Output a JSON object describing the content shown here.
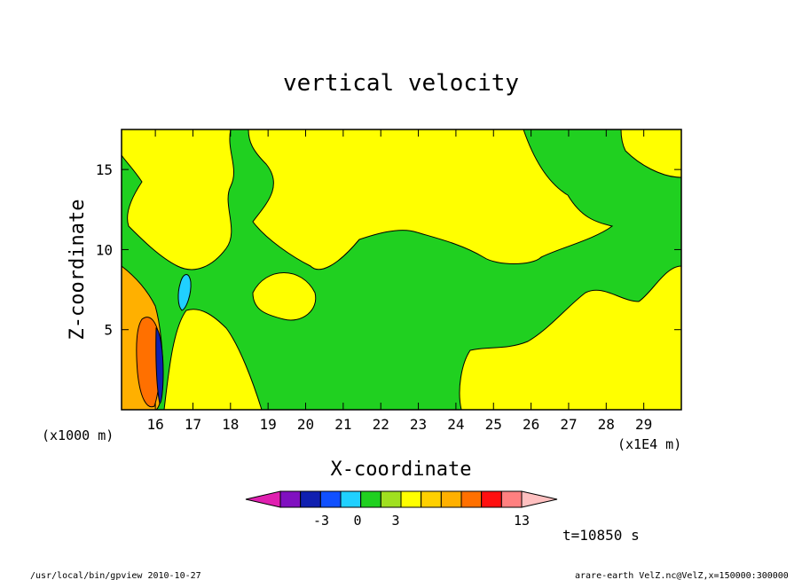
{
  "chart_data": {
    "type": "heatmap",
    "title": "vertical velocity",
    "xlabel": "X-coordinate",
    "ylabel": "Z-coordinate",
    "x_unit_left": "(x1000 m)",
    "x_unit_right": "(x1E4 m)",
    "xlim": [
      15.1,
      30.0
    ],
    "ylim": [
      0,
      17.5
    ],
    "x_ticks": [
      "16",
      "17",
      "18",
      "19",
      "20",
      "21",
      "22",
      "23",
      "24",
      "25",
      "26",
      "27",
      "28",
      "29"
    ],
    "x_tick_values": [
      16,
      17,
      18,
      19,
      20,
      21,
      22,
      23,
      24,
      25,
      26,
      27,
      28,
      29
    ],
    "y_ticks": [
      "5",
      "10",
      "15"
    ],
    "y_tick_values": [
      5,
      10,
      15
    ],
    "grid": false,
    "time_label": "t=10850 s",
    "colorbar": {
      "colors": [
        "#e020b0",
        "#8010c0",
        "#1020b0",
        "#1050ff",
        "#20d0ff",
        "#20d020",
        "#a0e020",
        "#ffff00",
        "#ffd000",
        "#ffb000",
        "#ff7000",
        "#ff1010",
        "#ff8080",
        "#ffc0c0"
      ],
      "tick_labels": [
        "-3",
        "0",
        "3",
        "13"
      ]
    },
    "regions": [
      {
        "name": "yellow",
        "color": "#ffff00"
      },
      {
        "name": "green",
        "color": "#20d020"
      },
      {
        "name": "orange",
        "color": "#ff7000"
      },
      {
        "name": "cyan",
        "color": "#20d0ff"
      }
    ]
  },
  "footer": {
    "left": "/usr/local/bin/gpview  2010-10-27",
    "right": "arare-earth_VelZ.nc@VelZ,x=150000:300000"
  }
}
